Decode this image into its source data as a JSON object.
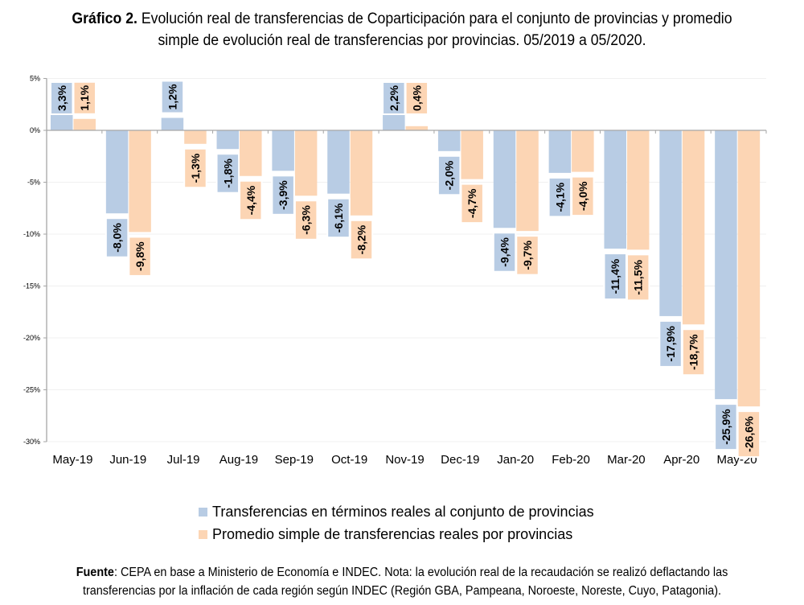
{
  "header": {
    "title_bold": "Gráfico 2.",
    "title_line1": " Evolución real de transferencias de Coparticipación para el conjunto de provincias y promedio",
    "title_line2": "simple de evolución real de transferencias por provincias. 05/2019 a 05/2020."
  },
  "chart_data": {
    "type": "bar",
    "title": "Gráfico 2. Evolución real de transferencias de Coparticipación para el conjunto de provincias y promedio simple de evolución real de transferencias por provincias. 05/2019 a 05/2020.",
    "xlabel": "",
    "ylabel": "",
    "ylim": [
      -30,
      5
    ],
    "yticks": [
      5,
      0,
      -5,
      -10,
      -15,
      -20,
      -25,
      -30
    ],
    "ytick_labels": [
      "5%",
      "0%",
      "-5%",
      "-10%",
      "-15%",
      "-20%",
      "-25%",
      "-30%"
    ],
    "grid": true,
    "legend_position": "bottom",
    "categories": [
      "May-19",
      "Jun-19",
      "Jul-19",
      "Aug-19",
      "Sep-19",
      "Oct-19",
      "Nov-19",
      "Dec-19",
      "Jan-20",
      "Feb-20",
      "Mar-20",
      "Apr-20",
      "May-20"
    ],
    "series": [
      {
        "name": "Transferencias en términos reales al conjunto de provincias",
        "color": "#b8cce4",
        "values": [
          3.3,
          -8.0,
          1.2,
          -1.8,
          -3.9,
          -6.1,
          2.2,
          -2.0,
          -9.4,
          -4.1,
          -11.4,
          -17.9,
          -25.9
        ],
        "labels": [
          "3,3%",
          "-8,0%",
          "1,2%",
          "-1,8%",
          "-3,9%",
          "-6,1%",
          "2,2%",
          "-2,0%",
          "-9,4%",
          "-4,1%",
          "-11,4%",
          "-17,9%",
          "-25,9%"
        ]
      },
      {
        "name": "Promedio simple de transferencias reales por provincias",
        "color": "#fcd5b4",
        "values": [
          1.1,
          -9.8,
          -1.3,
          -4.4,
          -6.3,
          -8.2,
          0.4,
          -4.7,
          -9.7,
          -4.0,
          -11.5,
          -18.7,
          -26.6
        ],
        "labels": [
          "1,1%",
          "-9,8%",
          "-1,3%",
          "-4,4%",
          "-6,3%",
          "-8,2%",
          "0,4%",
          "-4,7%",
          "-9,7%",
          "-4,0%",
          "-11,5%",
          "-18,7%",
          "-26,6%"
        ]
      }
    ]
  },
  "footer": {
    "source_label": "Fuente",
    "line1": ": CEPA en base a Ministerio de Economía e INDEC. Nota: la evolución real de la recaudación se realizó deflactando las",
    "line2": "transferencias por la inflación de cada región según INDEC (Región GBA, Pampeana, Noroeste, Noreste, Cuyo, Patagonia)."
  }
}
